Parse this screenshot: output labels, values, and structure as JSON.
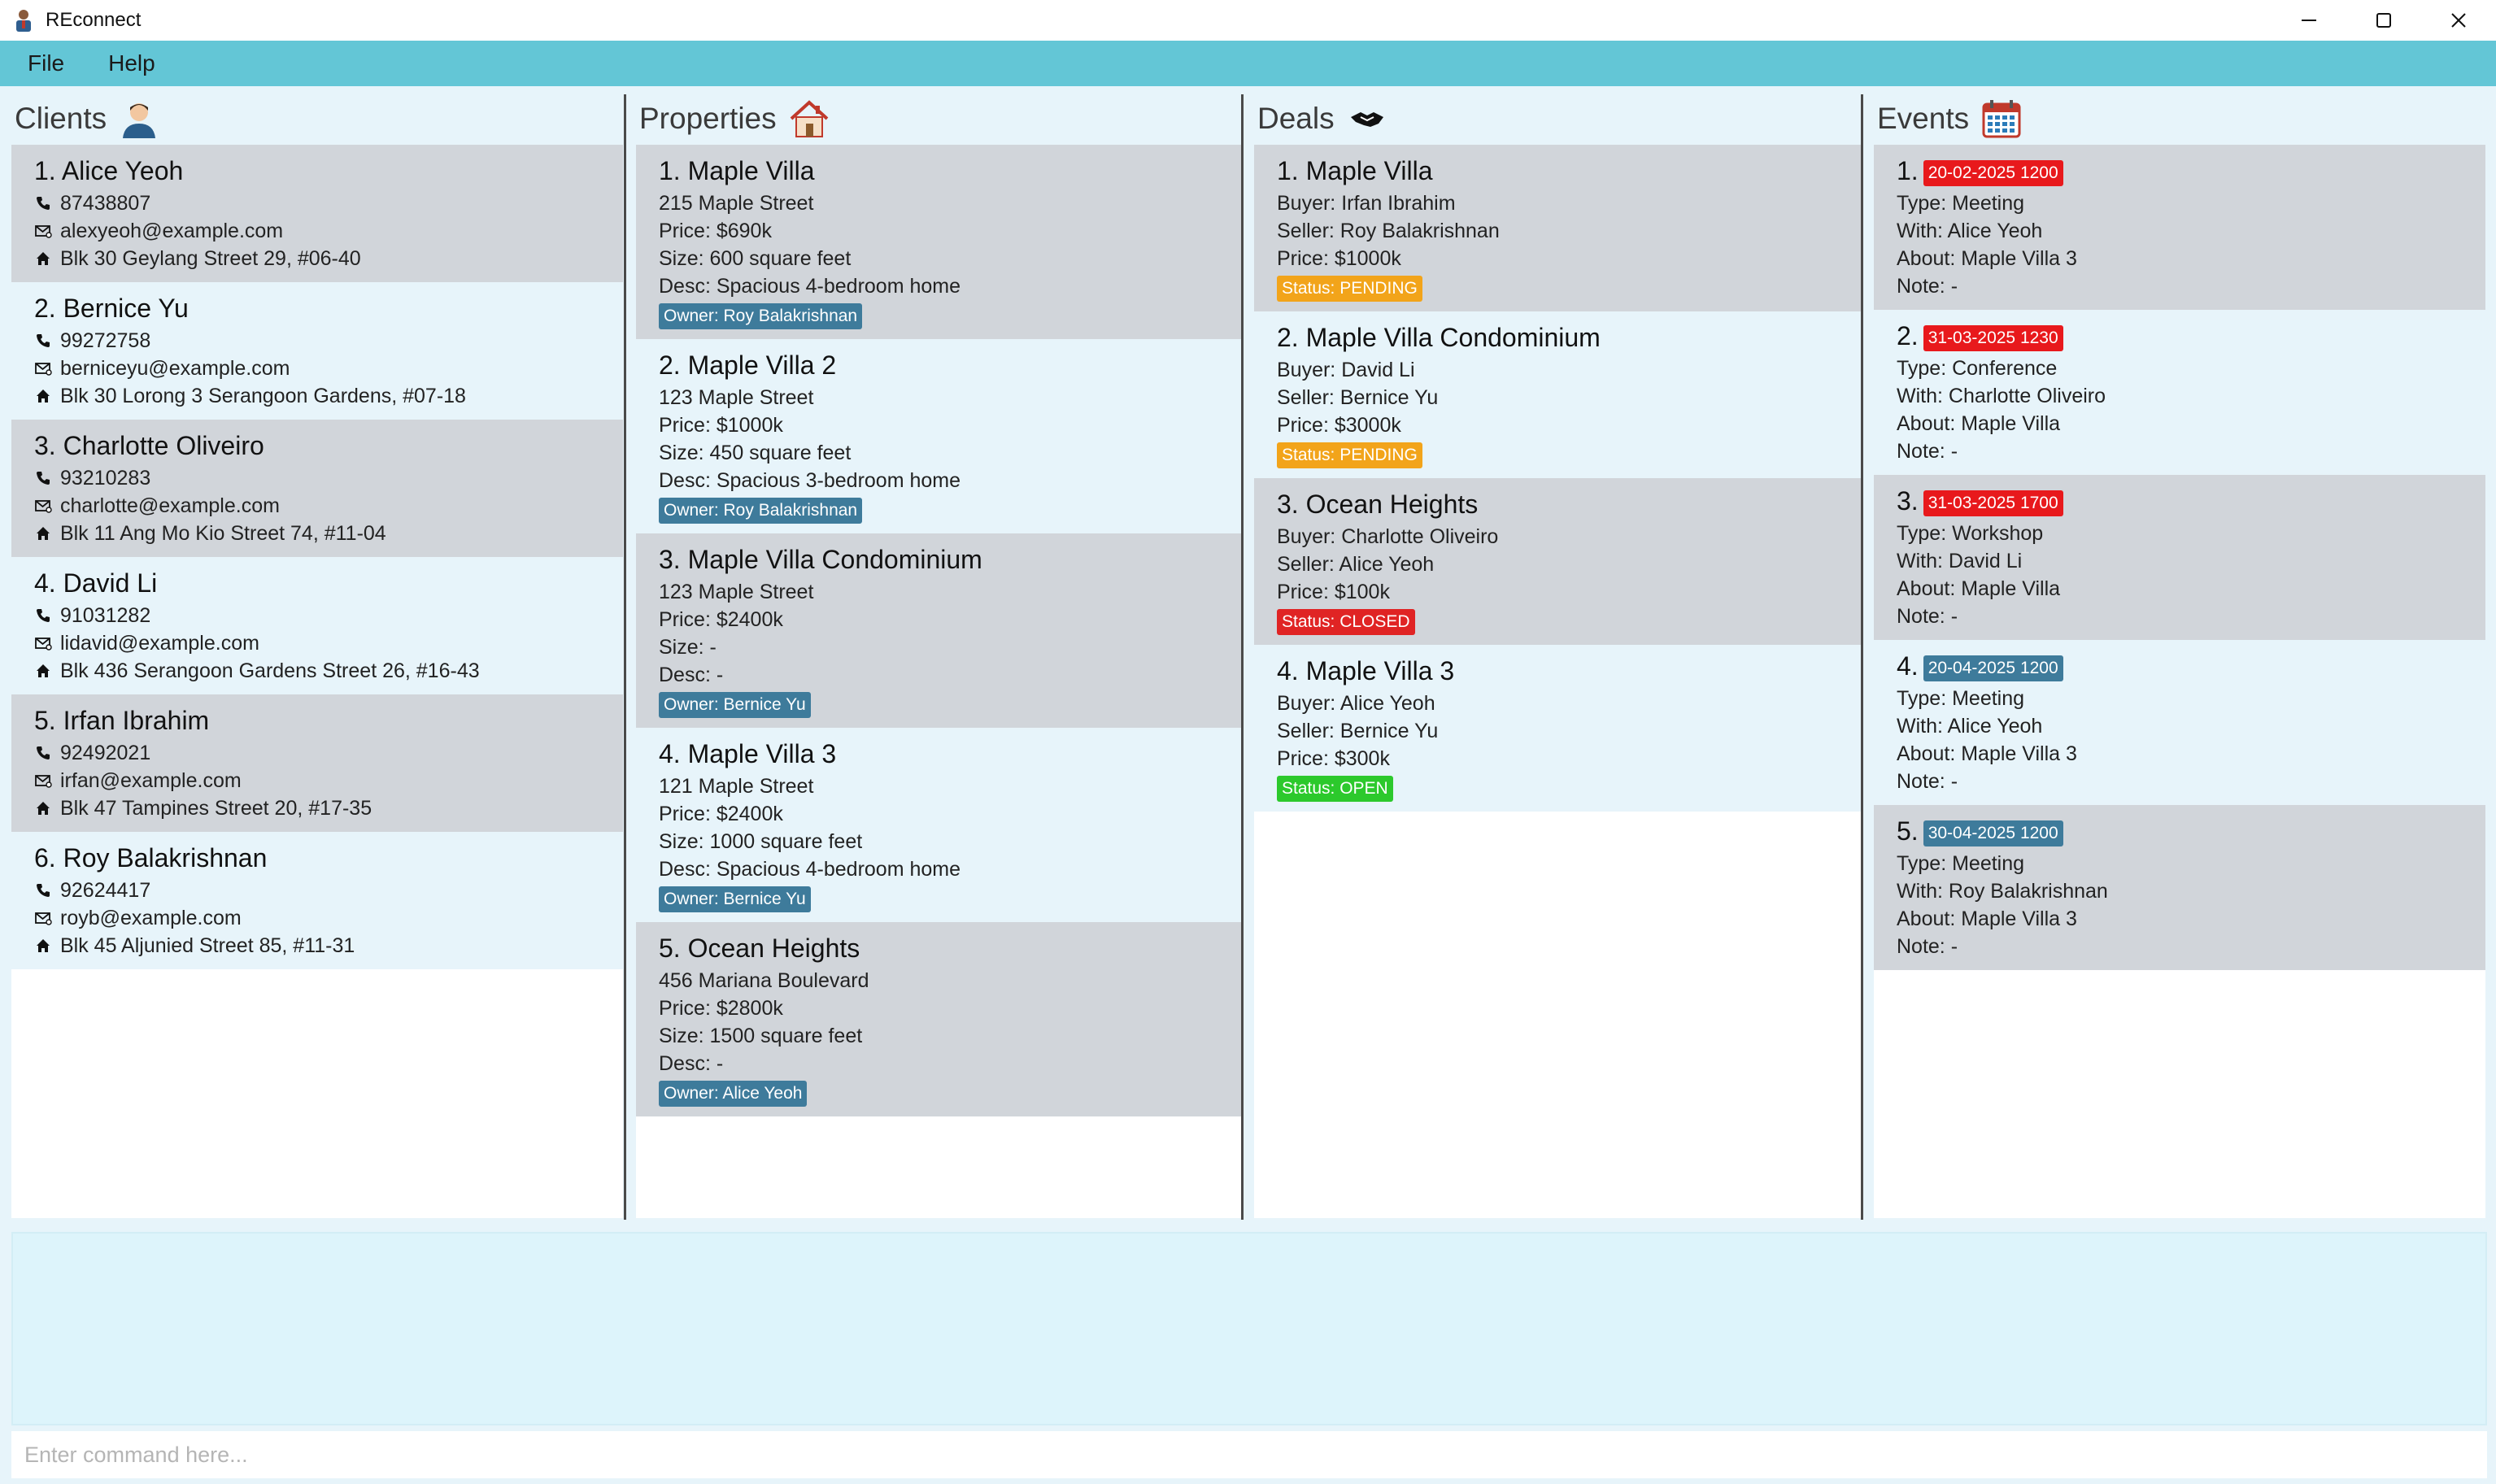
{
  "window": {
    "title": "REconnect",
    "controls": {
      "minimize": "—",
      "maximize": "☐",
      "close": "✕"
    }
  },
  "menu": {
    "file": "File",
    "help": "Help"
  },
  "clients": {
    "title": "Clients",
    "items": [
      {
        "title": "1. Alice Yeoh",
        "phone": "87438807",
        "email": "alexyeoh@example.com",
        "address": "Blk 30 Geylang Street 29, #06-40"
      },
      {
        "title": "2. Bernice Yu",
        "phone": "99272758",
        "email": "berniceyu@example.com",
        "address": "Blk 30 Lorong 3 Serangoon Gardens, #07-18"
      },
      {
        "title": "3. Charlotte Oliveiro",
        "phone": "93210283",
        "email": "charlotte@example.com",
        "address": "Blk 11 Ang Mo Kio Street 74, #11-04"
      },
      {
        "title": "4. David Li",
        "phone": "91031282",
        "email": "lidavid@example.com",
        "address": "Blk 436 Serangoon Gardens Street 26, #16-43"
      },
      {
        "title": "5. Irfan Ibrahim",
        "phone": "92492021",
        "email": "irfan@example.com",
        "address": "Blk 47 Tampines Street 20, #17-35"
      },
      {
        "title": "6. Roy Balakrishnan",
        "phone": "92624417",
        "email": "royb@example.com",
        "address": "Blk 45 Aljunied Street 85, #11-31"
      }
    ]
  },
  "properties": {
    "title": "Properties",
    "items": [
      {
        "title": "1. Maple Villa",
        "address": "215 Maple Street",
        "price": "Price: $690k",
        "size": "Size: 600 square feet",
        "desc": "Desc: Spacious 4-bedroom home",
        "owner": "Owner: Roy Balakrishnan"
      },
      {
        "title": "2. Maple Villa 2",
        "address": "123 Maple Street",
        "price": "Price: $1000k",
        "size": "Size: 450 square feet",
        "desc": "Desc: Spacious 3-bedroom home",
        "owner": "Owner: Roy Balakrishnan"
      },
      {
        "title": "3. Maple Villa Condominium",
        "address": "123 Maple Street",
        "price": "Price: $2400k",
        "size": "Size: -",
        "desc": "Desc: -",
        "owner": "Owner: Bernice Yu"
      },
      {
        "title": "4. Maple Villa 3",
        "address": "121 Maple Street",
        "price": "Price: $2400k",
        "size": "Size: 1000 square feet",
        "desc": "Desc: Spacious 4-bedroom home",
        "owner": "Owner: Bernice Yu"
      },
      {
        "title": "5. Ocean Heights",
        "address": "456 Mariana Boulevard",
        "price": "Price: $2800k",
        "size": "Size: 1500 square feet",
        "desc": "Desc: -",
        "owner": "Owner: Alice Yeoh"
      }
    ]
  },
  "deals": {
    "title": "Deals",
    "items": [
      {
        "title": "1. Maple Villa",
        "buyer": "Buyer: Irfan Ibrahim",
        "seller": "Seller: Roy Balakrishnan",
        "price": "Price: $1000k",
        "status": "Status: PENDING",
        "status_kind": "pending"
      },
      {
        "title": "2. Maple Villa Condominium",
        "buyer": "Buyer: David Li",
        "seller": "Seller: Bernice Yu",
        "price": "Price: $3000k",
        "status": "Status: PENDING",
        "status_kind": "pending"
      },
      {
        "title": "3. Ocean Heights",
        "buyer": "Buyer: Charlotte Oliveiro",
        "seller": "Seller: Alice Yeoh",
        "price": "Price: $100k",
        "status": "Status: CLOSED",
        "status_kind": "closed"
      },
      {
        "title": "4. Maple Villa 3",
        "buyer": "Buyer: Alice Yeoh",
        "seller": "Seller: Bernice Yu",
        "price": "Price: $300k",
        "status": "Status: OPEN",
        "status_kind": "open"
      }
    ]
  },
  "events": {
    "title": "Events",
    "items": [
      {
        "index": "1.",
        "date": "20-02-2025 1200",
        "date_kind": "red",
        "type": "Type: Meeting",
        "with": "With: Alice Yeoh",
        "about": "About: Maple Villa 3",
        "note": "Note: -"
      },
      {
        "index": "2.",
        "date": "31-03-2025 1230",
        "date_kind": "red",
        "type": "Type: Conference",
        "with": "With: Charlotte Oliveiro",
        "about": "About: Maple Villa",
        "note": "Note: -"
      },
      {
        "index": "3.",
        "date": "31-03-2025 1700",
        "date_kind": "red",
        "type": "Type: Workshop",
        "with": "With: David Li",
        "about": "About: Maple Villa",
        "note": "Note: -"
      },
      {
        "index": "4.",
        "date": "20-04-2025 1200",
        "date_kind": "blue",
        "type": "Type: Meeting",
        "with": "With: Alice Yeoh",
        "about": "About: Maple Villa 3",
        "note": "Note: -"
      },
      {
        "index": "5.",
        "date": "30-04-2025 1200",
        "date_kind": "blue",
        "type": "Type: Meeting",
        "with": "With: Roy Balakrishnan",
        "about": "About: Maple Villa 3",
        "note": "Note: -"
      }
    ]
  },
  "result": {
    "text": ""
  },
  "command": {
    "placeholder": "Enter command here...",
    "value": ""
  },
  "colors": {
    "menubar": "#63c6d6",
    "card_alt": "#d1d5da",
    "card_plain": "#e7f4fa",
    "owner_tag": "#3e7b9b",
    "pending": "#f2a41a",
    "closed": "#e02424",
    "open": "#2cc92c",
    "date_red": "#e8191c",
    "date_blue": "#3e7b9b"
  }
}
